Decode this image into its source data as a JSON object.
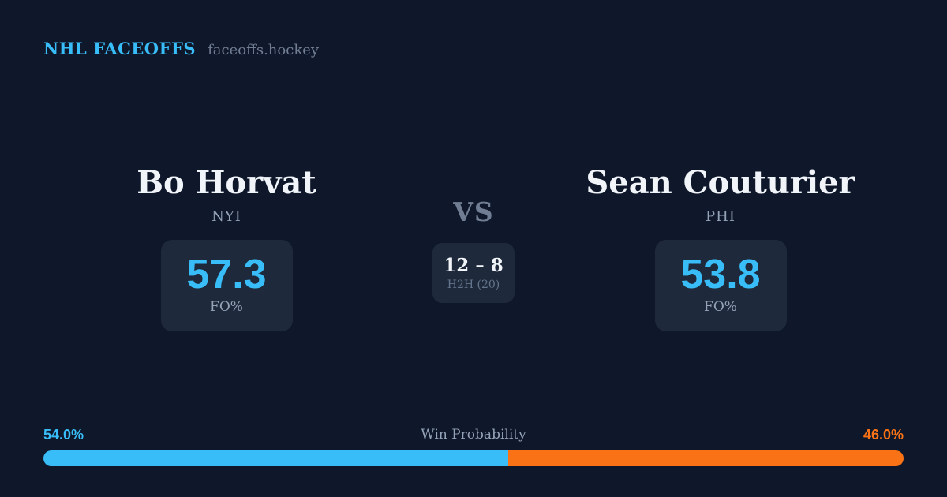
{
  "brand": {
    "title": "NHL FACEOFFS",
    "domain": "faceoffs.hockey"
  },
  "matchup": {
    "left": {
      "name": "Bo Horvat",
      "team": "NYI",
      "stat_value": "57.3",
      "stat_label": "FO%"
    },
    "right": {
      "name": "Sean Couturier",
      "team": "PHI",
      "stat_value": "53.8",
      "stat_label": "FO%"
    },
    "vs_label": "VS",
    "h2h_score": "12 – 8",
    "h2h_label": "H2H (20)"
  },
  "win_probability": {
    "label": "Win Probability",
    "left_label": "54.0%",
    "right_label": "46.0%",
    "left_value": 54.0,
    "right_value": 46.0
  },
  "colors": {
    "background": "#0f172a",
    "card": "#1e293b",
    "accent_blue": "#38bdf8",
    "accent_orange": "#f97316",
    "text_primary": "#f1f5f9",
    "text_muted": "#94a3b8",
    "text_faint": "#707d92",
    "text_dim": "#64748b"
  },
  "chart_data": {
    "type": "bar",
    "orientation": "horizontal",
    "stacked": true,
    "title": "Win Probability",
    "categories": [
      "Win Probability"
    ],
    "series": [
      {
        "name": "Bo Horvat (NYI)",
        "values": [
          54.0
        ],
        "color": "#38bdf8"
      },
      {
        "name": "Sean Couturier (PHI)",
        "values": [
          46.0
        ],
        "color": "#f97316"
      }
    ],
    "xlim": [
      0,
      100
    ],
    "grid": false,
    "legend_position": "none",
    "annotations": [
      "54.0%",
      "46.0%"
    ],
    "related_stats": {
      "fo_pct": {
        "Bo Horvat": 57.3,
        "Sean Couturier": 53.8
      },
      "h2h": {
        "score": "12 – 8",
        "sample": 20
      }
    }
  }
}
